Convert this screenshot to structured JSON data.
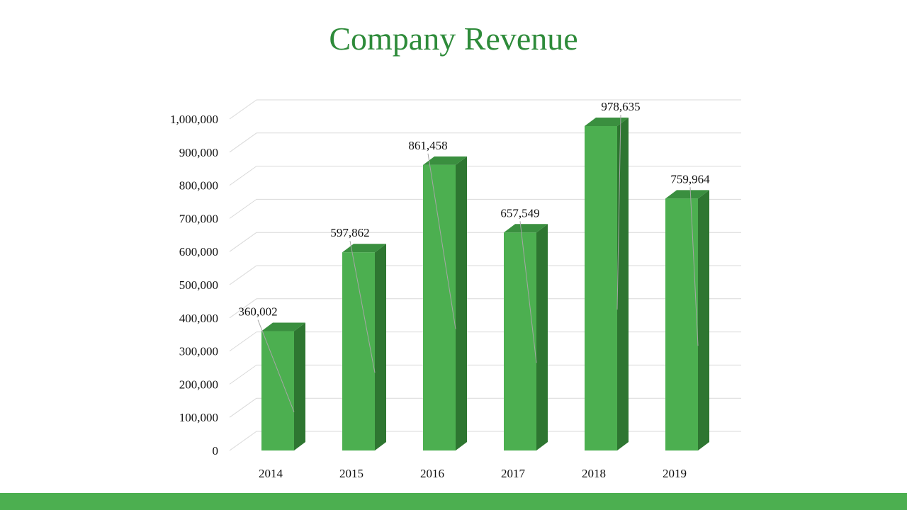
{
  "slide": {
    "title": "Company Revenue"
  },
  "colors": {
    "title": "#2e8b3a",
    "bar_front": "#4caf50",
    "bar_side": "#2e7631",
    "bar_top": "#3a8f3f",
    "gridline": "#d9d9d9",
    "footer": "#4caf50"
  },
  "chart_data": {
    "type": "bar",
    "style": "3d-column",
    "title": "Company Revenue",
    "categories": [
      "2014",
      "2015",
      "2016",
      "2017",
      "2018",
      "2019"
    ],
    "values": [
      360002,
      597862,
      861458,
      657549,
      978635,
      759964
    ],
    "data_labels": [
      "360,002",
      "597,862",
      "861,458",
      "657,549",
      "978,635",
      "759,964"
    ],
    "y_ticks": [
      0,
      100000,
      200000,
      300000,
      400000,
      500000,
      600000,
      700000,
      800000,
      900000,
      1000000
    ],
    "y_tick_labels": [
      "0",
      "100,000",
      "200,000",
      "300,000",
      "400,000",
      "500,000",
      "600,000",
      "700,000",
      "800,000",
      "900,000",
      "1,000,000"
    ],
    "ylim": [
      0,
      1000000
    ],
    "xlabel": "",
    "ylabel": "",
    "grid": true,
    "legend": "none"
  }
}
